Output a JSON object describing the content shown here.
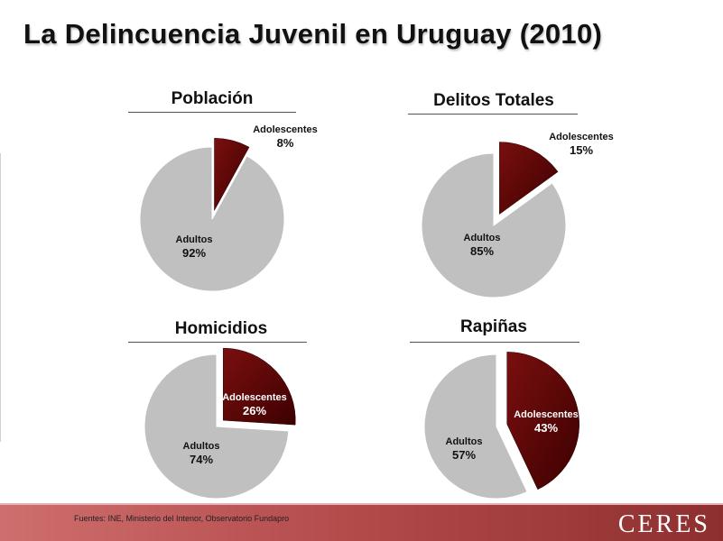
{
  "title": "La Delincuencia Juvenil en Uruguay (2010)",
  "colors": {
    "adolescentes_dark": "#3d0000",
    "adolescentes_light": "#7a0f0f",
    "adultos": "#c0c0c0",
    "adultos_stroke": "#ffffff",
    "footer": "#b24a4a"
  },
  "chart_data": [
    {
      "type": "pie",
      "title": "Población",
      "slices": [
        {
          "label": "Adolescentes",
          "value": 8,
          "value_label": "8%"
        },
        {
          "label": "Adultos",
          "value": 92,
          "value_label": "92%"
        }
      ]
    },
    {
      "type": "pie",
      "title": "Delitos Totales",
      "slices": [
        {
          "label": "Adolescentes",
          "value": 15,
          "value_label": "15%"
        },
        {
          "label": "Adultos",
          "value": 85,
          "value_label": "85%"
        }
      ]
    },
    {
      "type": "pie",
      "title": "Homicidios",
      "slices": [
        {
          "label": "Adolescentes",
          "value": 26,
          "value_label": "26%"
        },
        {
          "label": "Adultos",
          "value": 74,
          "value_label": "74%"
        }
      ]
    },
    {
      "type": "pie",
      "title": "Rapiñas",
      "slices": [
        {
          "label": "Adolescentes",
          "value": 43,
          "value_label": "43%"
        },
        {
          "label": "Adultos",
          "value": 57,
          "value_label": "57%"
        }
      ]
    }
  ],
  "footer": {
    "source": "Fuentes: INE, Ministerio del Intenor, Observatorio Fundapro",
    "logo": "CERES"
  }
}
